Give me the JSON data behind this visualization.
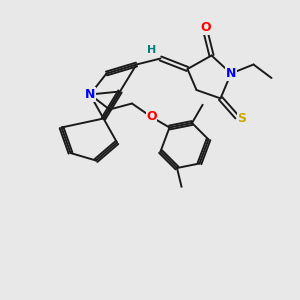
{
  "background_color": "#e8e8e8",
  "bond_color": "#1a1a1a",
  "atom_colors": {
    "O": "#ff0000",
    "N": "#0000ff",
    "S": "#ccaa00",
    "H": "#008080"
  },
  "figsize": [
    3.0,
    3.0
  ],
  "dpi": 100
}
